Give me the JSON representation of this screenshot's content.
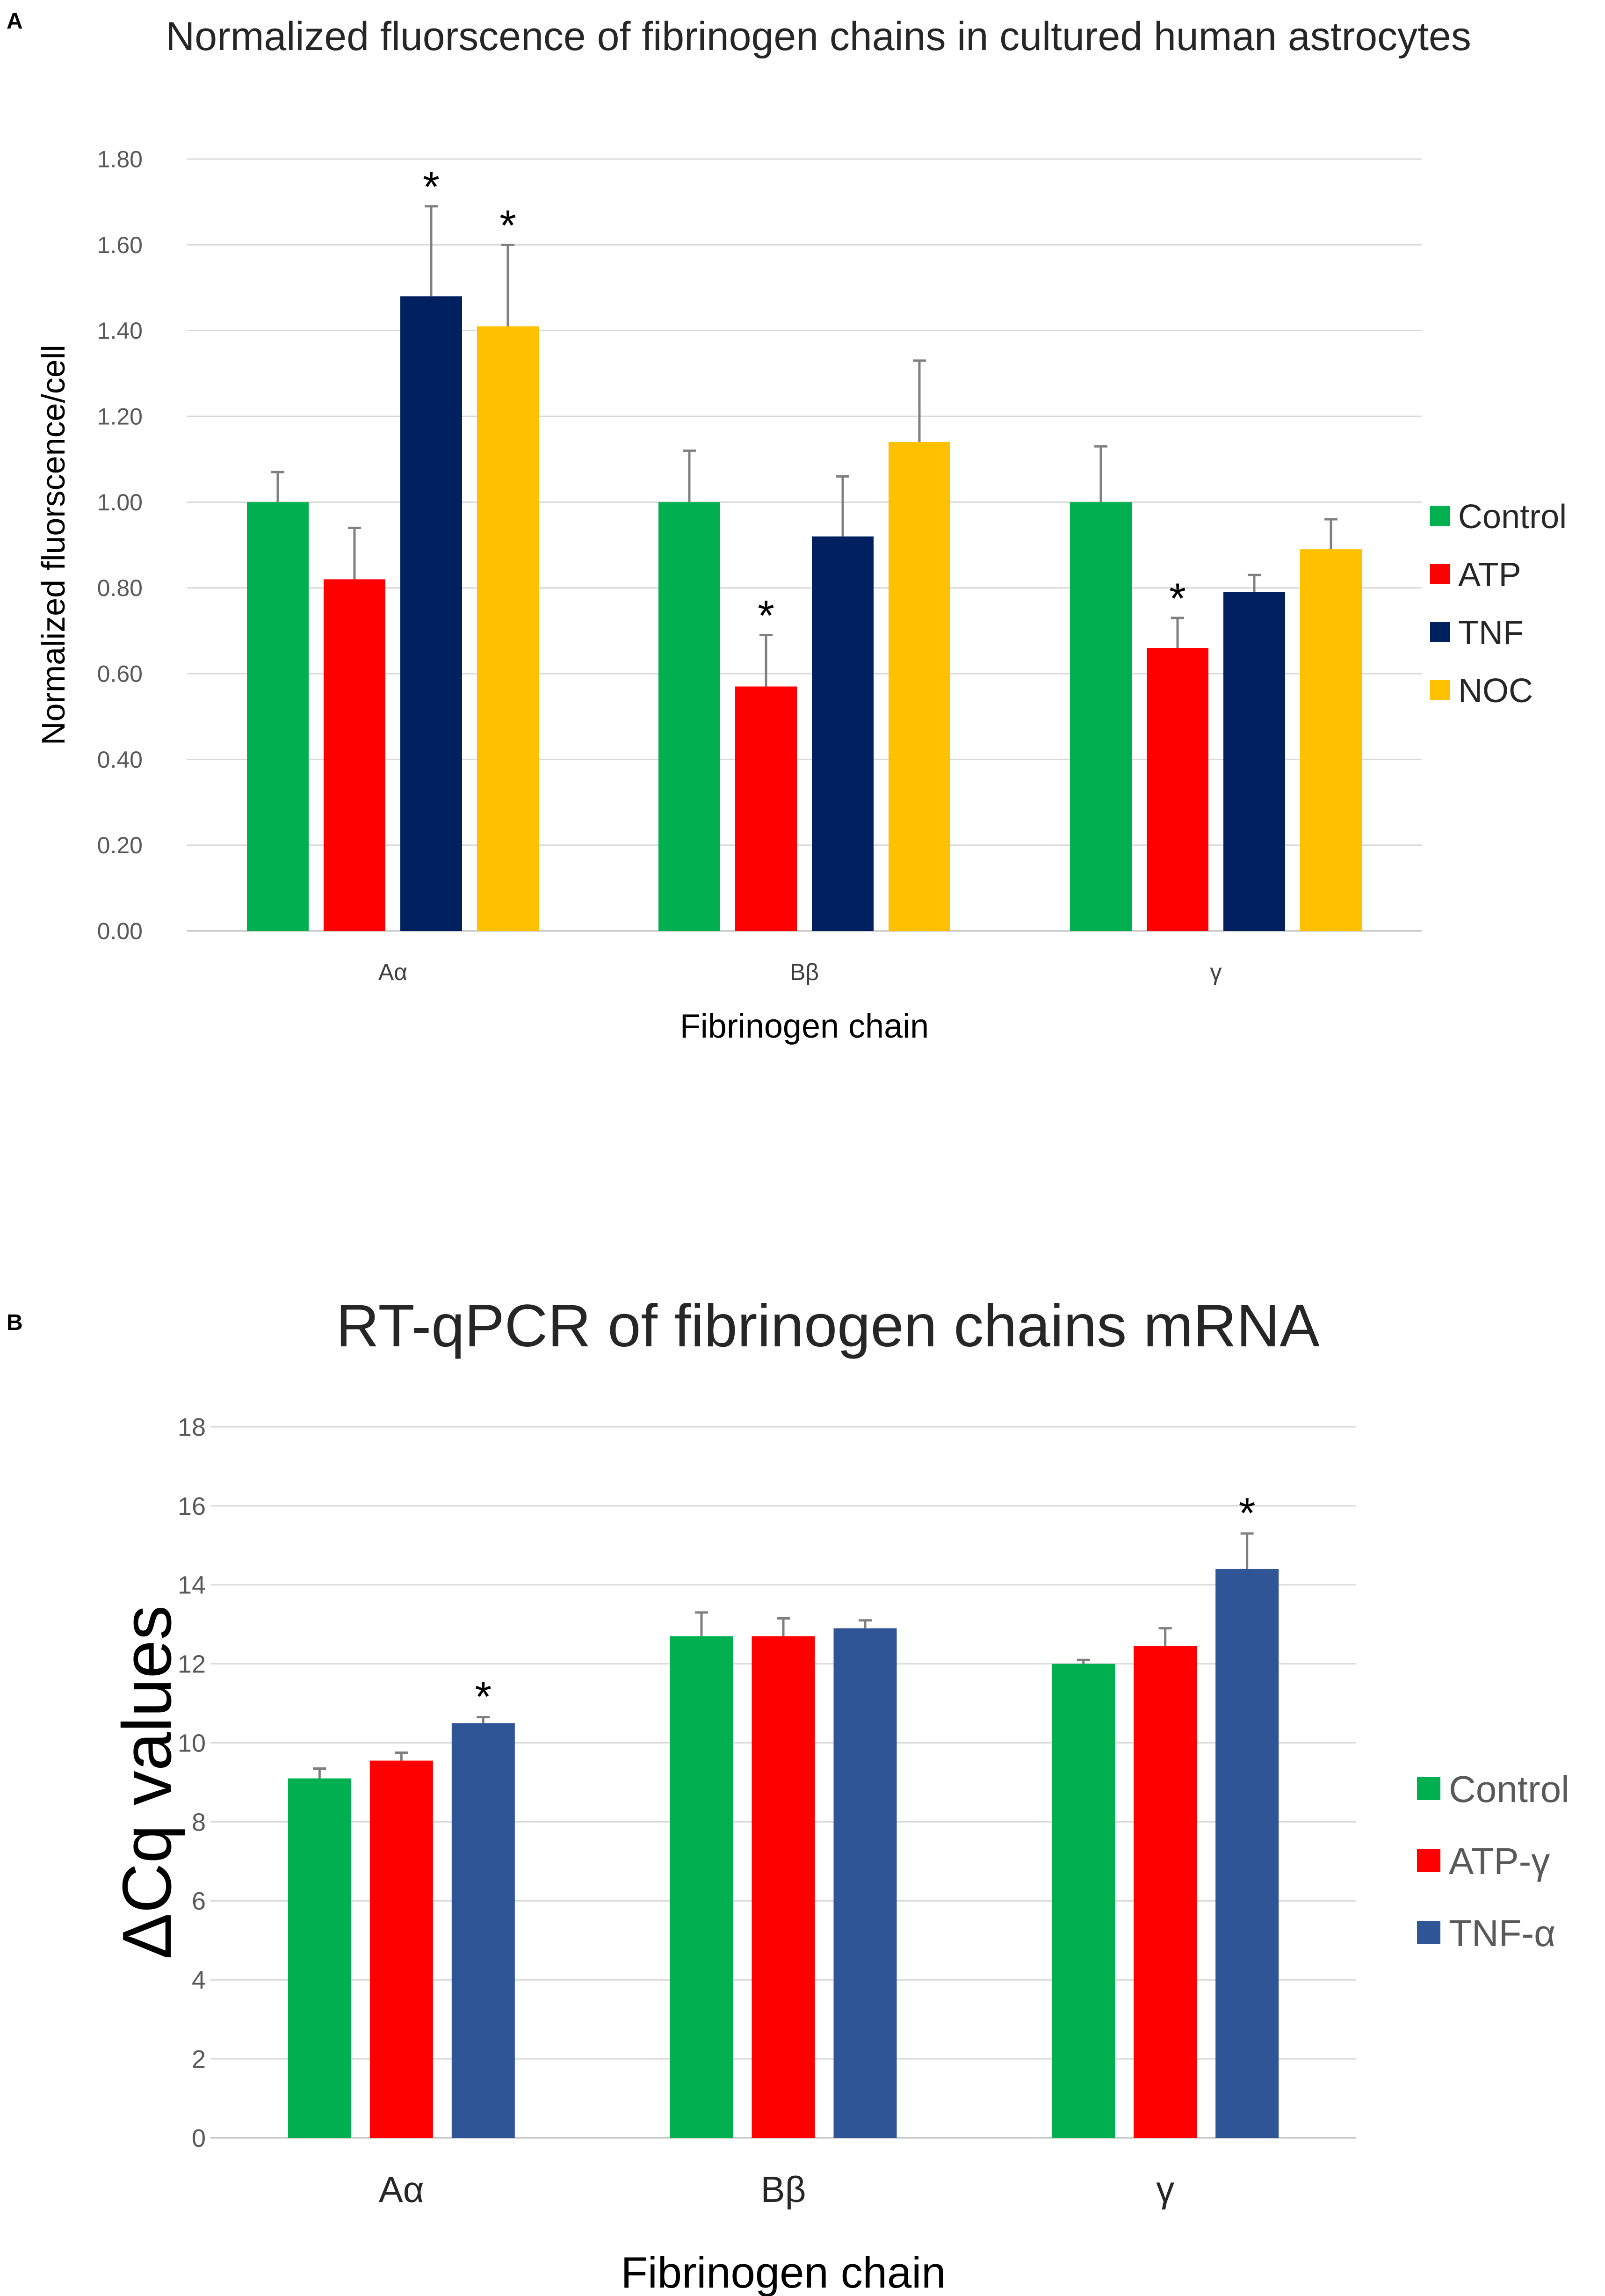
{
  "chart_data": [
    {
      "panel": "A",
      "type": "bar",
      "title": "Normalized fluorscence of fibrinogen chains in cultured human astrocytes",
      "xlabel": "Fibrinogen chain",
      "ylabel": "Normalized  fluorscence/cell",
      "categories": [
        "Aα",
        "Bβ",
        "γ"
      ],
      "ylim": [
        0,
        1.8
      ],
      "yticks": [
        "0.00",
        "0.20",
        "0.40",
        "0.60",
        "0.80",
        "1.00",
        "1.20",
        "1.40",
        "1.60",
        "1.80"
      ],
      "grid": true,
      "legend_position": "right",
      "series": [
        {
          "name": "Control",
          "color": "#00b050",
          "values": [
            1.0,
            1.0,
            1.0
          ],
          "errors": [
            0.07,
            0.12,
            0.13
          ],
          "significant": [
            false,
            false,
            false
          ]
        },
        {
          "name": "ATP",
          "color": "#ff0000",
          "values": [
            0.82,
            0.57,
            0.66
          ],
          "errors": [
            0.12,
            0.12,
            0.07
          ],
          "significant": [
            false,
            true,
            true
          ]
        },
        {
          "name": "TNF",
          "color": "#002060",
          "values": [
            1.48,
            0.92,
            0.79
          ],
          "errors": [
            0.21,
            0.14,
            0.04
          ],
          "significant": [
            true,
            false,
            false
          ]
        },
        {
          "name": "NOC",
          "color": "#ffc000",
          "values": [
            1.41,
            1.14,
            0.89
          ],
          "errors": [
            0.19,
            0.19,
            0.07
          ],
          "significant": [
            true,
            false,
            false
          ]
        }
      ],
      "significance_marker": "*"
    },
    {
      "panel": "B",
      "type": "bar",
      "title": "RT-qPCR of fibrinogen chains mRNA",
      "xlabel": "Fibrinogen chain",
      "ylabel": "ΔCq values",
      "categories": [
        "Aα",
        "Bβ",
        "γ"
      ],
      "ylim": [
        0,
        18
      ],
      "yticks": [
        "0",
        "2",
        "4",
        "6",
        "8",
        "10",
        "12",
        "14",
        "16",
        "18"
      ],
      "grid": true,
      "legend_position": "right",
      "series": [
        {
          "name": "Control",
          "color": "#00b050",
          "values": [
            9.1,
            12.7,
            12.0
          ],
          "errors": [
            0.25,
            0.6,
            0.1
          ],
          "significant": [
            false,
            false,
            false
          ]
        },
        {
          "name": "ATP-γ",
          "color": "#ff0000",
          "values": [
            9.55,
            12.7,
            12.45
          ],
          "errors": [
            0.2,
            0.45,
            0.45
          ],
          "significant": [
            false,
            false,
            false
          ]
        },
        {
          "name": "TNF-α",
          "color": "#2f5597",
          "values": [
            10.5,
            12.9,
            14.4
          ],
          "errors": [
            0.15,
            0.2,
            0.9
          ],
          "significant": [
            true,
            false,
            true
          ]
        }
      ],
      "significance_marker": "*"
    }
  ]
}
